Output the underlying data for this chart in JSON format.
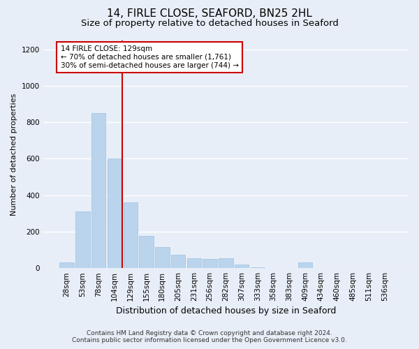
{
  "title": "14, FIRLE CLOSE, SEAFORD, BN25 2HL",
  "subtitle": "Size of property relative to detached houses in Seaford",
  "xlabel": "Distribution of detached houses by size in Seaford",
  "ylabel": "Number of detached properties",
  "bin_labels": [
    "28sqm",
    "53sqm",
    "78sqm",
    "104sqm",
    "129sqm",
    "155sqm",
    "180sqm",
    "205sqm",
    "231sqm",
    "256sqm",
    "282sqm",
    "307sqm",
    "333sqm",
    "358sqm",
    "383sqm",
    "409sqm",
    "434sqm",
    "460sqm",
    "485sqm",
    "511sqm",
    "536sqm"
  ],
  "bar_values": [
    30,
    310,
    850,
    600,
    360,
    175,
    115,
    75,
    55,
    50,
    55,
    20,
    5,
    0,
    0,
    30,
    0,
    0,
    0,
    0,
    0
  ],
  "bar_color": "#bad4ed",
  "bar_edge_color": "#9dbfe0",
  "vline_index": 4,
  "vline_color": "#cc0000",
  "annotation_text": "14 FIRLE CLOSE: 129sqm\n← 70% of detached houses are smaller (1,761)\n30% of semi-detached houses are larger (744) →",
  "annotation_box_color": "#ffffff",
  "annotation_box_edge": "#cc0000",
  "ylim": [
    0,
    1250
  ],
  "yticks": [
    0,
    200,
    400,
    600,
    800,
    1000,
    1200
  ],
  "footer_line1": "Contains HM Land Registry data © Crown copyright and database right 2024.",
  "footer_line2": "Contains public sector information licensed under the Open Government Licence v3.0.",
  "bg_color": "#e8eef7",
  "plot_bg_color": "#e8eef7",
  "grid_color": "#ffffff",
  "title_fontsize": 11,
  "subtitle_fontsize": 9.5,
  "xlabel_fontsize": 9,
  "ylabel_fontsize": 8,
  "tick_fontsize": 7.5,
  "footer_fontsize": 6.5,
  "annotation_fontsize": 7.5
}
